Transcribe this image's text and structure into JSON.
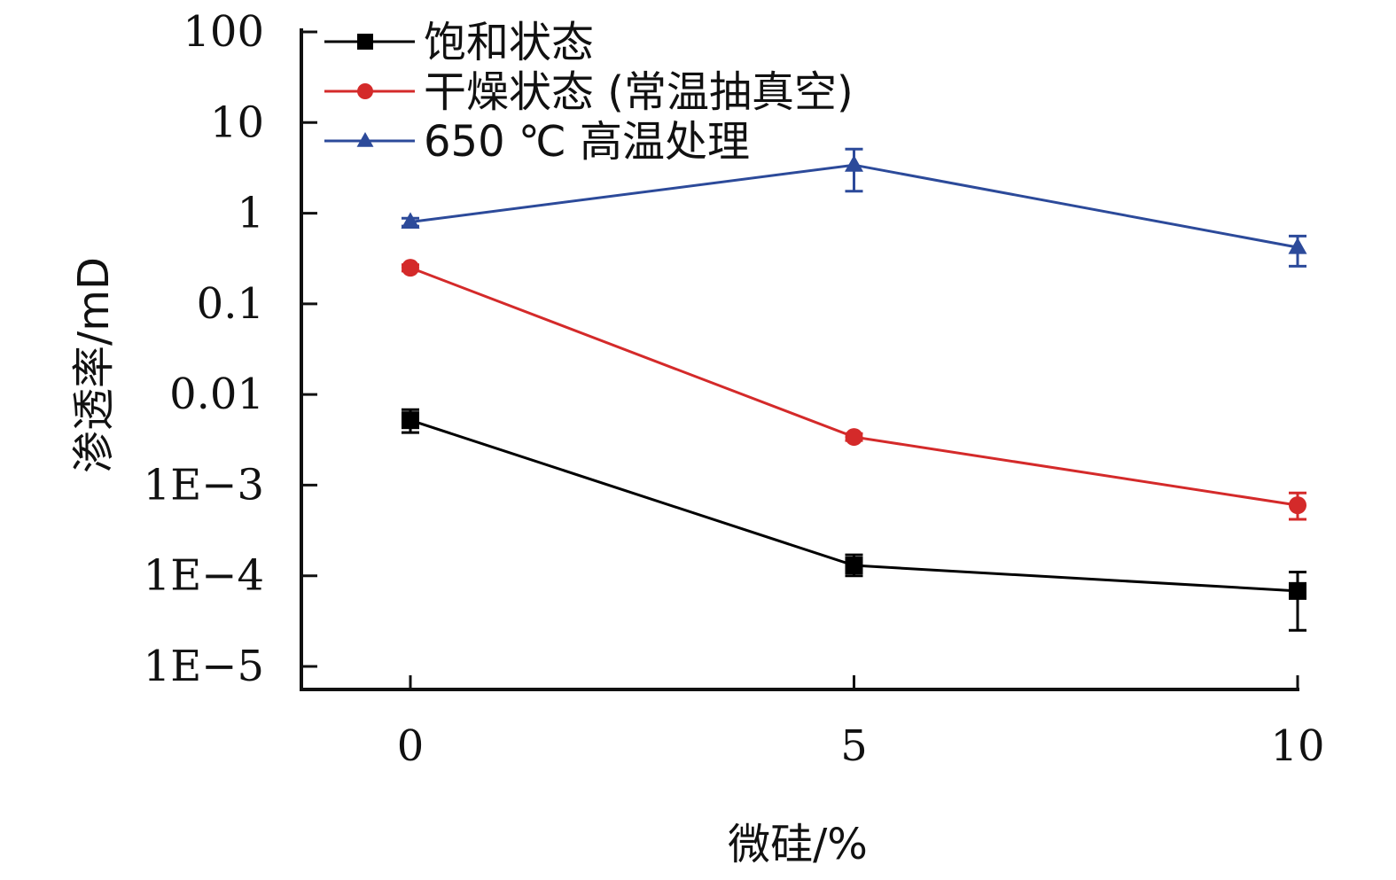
{
  "chart_data": {
    "type": "line",
    "title": "",
    "xlabel": "微硅/%",
    "ylabel": "渗透率/mD",
    "x": [
      0,
      5,
      10
    ],
    "x_tick_labels": [
      "0",
      "5",
      "10"
    ],
    "y_scale": "log",
    "ylim": [
      1e-05,
      100
    ],
    "y_ticks": [
      100,
      10,
      1,
      0.1,
      0.01,
      0.001,
      0.0001,
      1e-05
    ],
    "y_tick_labels": [
      "100",
      "10",
      "1",
      "0.1",
      "0.01",
      "1E−3",
      "1E−4",
      "1E−5"
    ],
    "grid": false,
    "legend_position": "top-left",
    "series": [
      {
        "name": "饱和状态",
        "color": "#000000",
        "marker": "square",
        "values": [
          0.0052,
          0.00013,
          6.8e-05
        ],
        "error_low": [
          0.0038,
          0.0001,
          2.5e-05
        ],
        "error_high": [
          0.0068,
          0.00017,
          0.00011
        ]
      },
      {
        "name": "干燥状态 (常温抽真空)",
        "color": "#d42a2a",
        "marker": "circle",
        "values": [
          0.25,
          0.0034,
          0.0006
        ],
        "error_low": [
          0.23,
          0.0031,
          0.00042
        ],
        "error_high": [
          0.27,
          0.0037,
          0.00082
        ]
      },
      {
        "name": "650 ℃ 高温处理",
        "color": "#2c4a9a",
        "marker": "triangle",
        "values": [
          0.8,
          3.4,
          0.42
        ],
        "error_low": [
          0.72,
          1.75,
          0.26
        ],
        "error_high": [
          0.88,
          5.1,
          0.56
        ]
      }
    ]
  }
}
